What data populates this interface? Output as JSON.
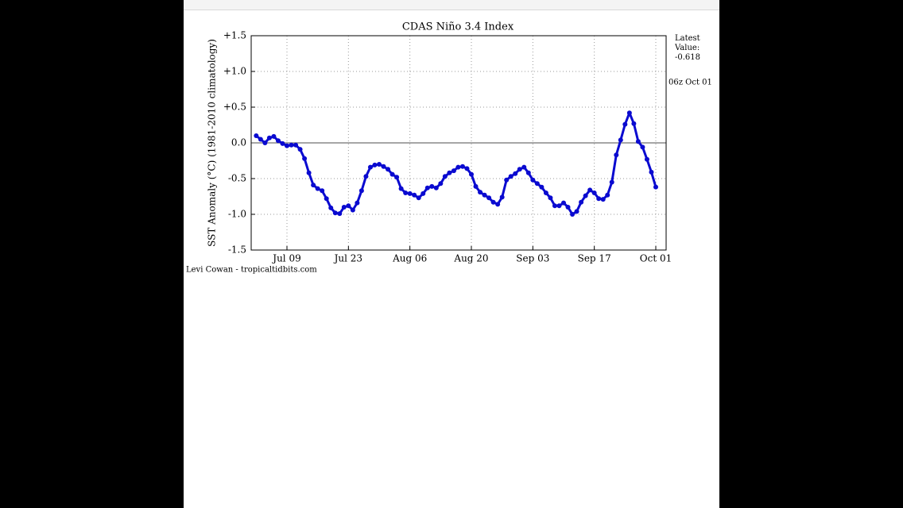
{
  "chart_data": {
    "type": "line",
    "title": "CDAS Niño 3.4 Index",
    "ylabel": "SST Anomaly (°C) (1981-2010 climatology)",
    "latest_label": "Latest Value:",
    "latest_value": "-0.618",
    "latest_time": "06z Oct 01",
    "credit": "Levi Cowan - tropicaltidbits.com",
    "x": [
      "Jul 02",
      "Jul 03",
      "Jul 04",
      "Jul 05",
      "Jul 06",
      "Jul 07",
      "Jul 08",
      "Jul 09",
      "Jul 10",
      "Jul 11",
      "Jul 12",
      "Jul 13",
      "Jul 14",
      "Jul 15",
      "Jul 16",
      "Jul 17",
      "Jul 18",
      "Jul 19",
      "Jul 20",
      "Jul 21",
      "Jul 22",
      "Jul 23",
      "Jul 24",
      "Jul 25",
      "Jul 26",
      "Jul 27",
      "Jul 28",
      "Jul 29",
      "Jul 30",
      "Jul 31",
      "Aug 01",
      "Aug 02",
      "Aug 03",
      "Aug 04",
      "Aug 05",
      "Aug 06",
      "Aug 07",
      "Aug 08",
      "Aug 09",
      "Aug 10",
      "Aug 11",
      "Aug 12",
      "Aug 13",
      "Aug 14",
      "Aug 15",
      "Aug 16",
      "Aug 17",
      "Aug 18",
      "Aug 19",
      "Aug 20",
      "Aug 21",
      "Aug 22",
      "Aug 23",
      "Aug 24",
      "Aug 25",
      "Aug 26",
      "Aug 27",
      "Aug 28",
      "Aug 29",
      "Aug 30",
      "Aug 31",
      "Sep 01",
      "Sep 02",
      "Sep 03",
      "Sep 04",
      "Sep 05",
      "Sep 06",
      "Sep 07",
      "Sep 08",
      "Sep 09",
      "Sep 10",
      "Sep 11",
      "Sep 12",
      "Sep 13",
      "Sep 14",
      "Sep 15",
      "Sep 16",
      "Sep 17",
      "Sep 18",
      "Sep 19",
      "Sep 20",
      "Sep 21",
      "Sep 22",
      "Sep 23",
      "Sep 24",
      "Sep 25",
      "Sep 26",
      "Sep 27",
      "Sep 28",
      "Sep 29",
      "Sep 30",
      "Oct 01"
    ],
    "series": [
      {
        "color": "#0a0ad0",
        "values": [
          0.1,
          0.05,
          0.0,
          0.07,
          0.09,
          0.03,
          -0.01,
          -0.04,
          -0.03,
          -0.03,
          -0.09,
          -0.22,
          -0.42,
          -0.59,
          -0.64,
          -0.67,
          -0.78,
          -0.91,
          -0.98,
          -0.99,
          -0.9,
          -0.88,
          -0.94,
          -0.84,
          -0.67,
          -0.47,
          -0.34,
          -0.31,
          -0.3,
          -0.33,
          -0.37,
          -0.44,
          -0.48,
          -0.64,
          -0.7,
          -0.71,
          -0.73,
          -0.77,
          -0.71,
          -0.63,
          -0.61,
          -0.63,
          -0.57,
          -0.47,
          -0.42,
          -0.39,
          -0.34,
          -0.33,
          -0.36,
          -0.44,
          -0.61,
          -0.69,
          -0.73,
          -0.77,
          -0.83,
          -0.86,
          -0.76,
          -0.52,
          -0.47,
          -0.43,
          -0.37,
          -0.34,
          -0.42,
          -0.52,
          -0.57,
          -0.62,
          -0.7,
          -0.77,
          -0.88,
          -0.88,
          -0.84,
          -0.9,
          -1.0,
          -0.96,
          -0.83,
          -0.74,
          -0.66,
          -0.7,
          -0.78,
          -0.79,
          -0.73,
          -0.55,
          -0.17,
          0.04,
          0.26,
          0.42,
          0.27,
          0.02,
          -0.06,
          -0.23,
          -0.41,
          -0.618
        ]
      }
    ],
    "xticks": [
      "Jul 09",
      "Jul 23",
      "Aug 06",
      "Aug 20",
      "Sep 03",
      "Sep 17",
      "Oct 01"
    ],
    "ylim": [
      -1.5,
      1.5
    ],
    "yticks": [
      {
        "value": 1.5,
        "label": "+1.5"
      },
      {
        "value": 1.0,
        "label": "+1.0"
      },
      {
        "value": 0.5,
        "label": "+0.5"
      },
      {
        "value": 0,
        "label": "0.0"
      },
      {
        "value": -0.5,
        "label": "-0.5"
      },
      {
        "value": -1.0,
        "label": "-1.0"
      },
      {
        "value": -1.5,
        "label": "-1.5"
      }
    ],
    "grid": true,
    "zero_line": true
  }
}
